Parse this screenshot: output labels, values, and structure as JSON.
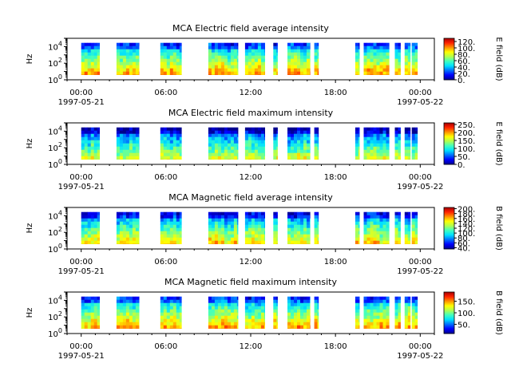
{
  "colors": {
    "colormap": [
      "#00008f",
      "#0000ff",
      "#0070ff",
      "#00e0ff",
      "#40ffbf",
      "#b0ff50",
      "#ffff00",
      "#ff9000",
      "#ff2000",
      "#a00000"
    ]
  },
  "chart_data": [
    {
      "type": "heatmap",
      "title": "MCA  Electric field average intensity",
      "ylabel": "Hz",
      "yticks": [
        "10^0",
        "10^2",
        "10^4"
      ],
      "yscale": "log",
      "ylim_hz": [
        1,
        100000
      ],
      "xticks": [
        "00:00",
        "06:00",
        "12:00",
        "18:00",
        "00:00"
      ],
      "xdates": [
        "1997-05-21",
        "1997-05-22"
      ],
      "xlim_hours": [
        -1,
        25
      ],
      "colorbar_label": "E field (dB)",
      "colorbar_ticks": [
        "0.",
        "20.",
        "40.",
        "60.",
        "80.",
        "100.",
        "120."
      ],
      "clim": [
        0,
        130
      ],
      "typical_level_db": 65,
      "data_intervals_hours": [
        [
          0,
          1.3
        ],
        [
          2.5,
          4.1
        ],
        [
          5.6,
          7.1
        ],
        [
          9.0,
          11.1
        ],
        [
          11.6,
          13.0
        ],
        [
          13.6,
          13.9
        ],
        [
          14.6,
          16.2
        ],
        [
          16.5,
          16.8
        ],
        [
          19.4,
          19.7
        ],
        [
          20.0,
          21.8
        ],
        [
          22.2,
          22.6
        ],
        [
          22.9,
          23.3
        ],
        [
          23.4,
          23.8
        ]
      ]
    },
    {
      "type": "heatmap",
      "title": "MCA  Electric field maximum intensity",
      "ylabel": "Hz",
      "yticks": [
        "10^0",
        "10^2",
        "10^4"
      ],
      "yscale": "log",
      "ylim_hz": [
        1,
        100000
      ],
      "xticks": [
        "00:00",
        "06:00",
        "12:00",
        "18:00",
        "00:00"
      ],
      "xdates": [
        "1997-05-21",
        "1997-05-22"
      ],
      "xlim_hours": [
        -1,
        25
      ],
      "colorbar_label": "E field (dB)",
      "colorbar_ticks": [
        "0.",
        "50.",
        "100.",
        "150.",
        "200.",
        "250."
      ],
      "clim": [
        0,
        260
      ],
      "typical_level_db": 95,
      "data_intervals_hours": [
        [
          0,
          1.3
        ],
        [
          2.5,
          4.1
        ],
        [
          5.6,
          7.1
        ],
        [
          9.0,
          11.1
        ],
        [
          11.6,
          13.0
        ],
        [
          13.6,
          13.9
        ],
        [
          14.6,
          16.2
        ],
        [
          16.5,
          16.8
        ],
        [
          19.4,
          19.7
        ],
        [
          20.0,
          21.8
        ],
        [
          22.2,
          22.6
        ],
        [
          22.9,
          23.3
        ],
        [
          23.4,
          23.8
        ]
      ]
    },
    {
      "type": "heatmap",
      "title": "MCA  Magnetic field average intensity",
      "ylabel": "Hz",
      "yticks": [
        "10^0",
        "10^2",
        "10^4"
      ],
      "yscale": "log",
      "ylim_hz": [
        1,
        100000
      ],
      "xticks": [
        "00:00",
        "06:00",
        "12:00",
        "18:00",
        "00:00"
      ],
      "xdates": [
        "1997-05-21",
        "1997-05-22"
      ],
      "xlim_hours": [
        -1,
        25
      ],
      "colorbar_label": "B field (dB)",
      "colorbar_ticks": [
        "40.",
        "60.",
        "80.",
        "100.",
        "120.",
        "140.",
        "160.",
        "180.",
        "200."
      ],
      "clim": [
        35,
        205
      ],
      "typical_level_db": 110,
      "data_intervals_hours": [
        [
          0,
          1.3
        ],
        [
          2.5,
          4.1
        ],
        [
          5.6,
          7.1
        ],
        [
          9.0,
          11.1
        ],
        [
          11.6,
          13.0
        ],
        [
          13.6,
          13.9
        ],
        [
          14.6,
          16.2
        ],
        [
          16.5,
          16.8
        ],
        [
          19.4,
          19.7
        ],
        [
          20.0,
          21.8
        ],
        [
          22.2,
          22.6
        ],
        [
          22.9,
          23.3
        ],
        [
          23.4,
          23.8
        ]
      ]
    },
    {
      "type": "heatmap",
      "title": "MCA  Magnetic field maximum intensity",
      "ylabel": "Hz",
      "yticks": [
        "10^0",
        "10^2",
        "10^4"
      ],
      "yscale": "log",
      "ylim_hz": [
        1,
        100000
      ],
      "xticks": [
        "00:00",
        "06:00",
        "12:00",
        "18:00",
        "00:00"
      ],
      "xdates": [
        "1997-05-21",
        "1997-05-22"
      ],
      "xlim_hours": [
        -1,
        25
      ],
      "colorbar_label": "B field (dB)",
      "colorbar_ticks": [
        "50.",
        "100.",
        "150."
      ],
      "clim": [
        10,
        190
      ],
      "typical_level_db": 100,
      "data_intervals_hours": [
        [
          0,
          1.3
        ],
        [
          2.5,
          4.1
        ],
        [
          5.6,
          7.1
        ],
        [
          9.0,
          11.1
        ],
        [
          11.6,
          13.0
        ],
        [
          13.6,
          13.9
        ],
        [
          14.6,
          16.2
        ],
        [
          16.5,
          16.8
        ],
        [
          19.4,
          19.7
        ],
        [
          20.0,
          21.8
        ],
        [
          22.2,
          22.6
        ],
        [
          22.9,
          23.3
        ],
        [
          23.4,
          23.8
        ]
      ]
    }
  ]
}
